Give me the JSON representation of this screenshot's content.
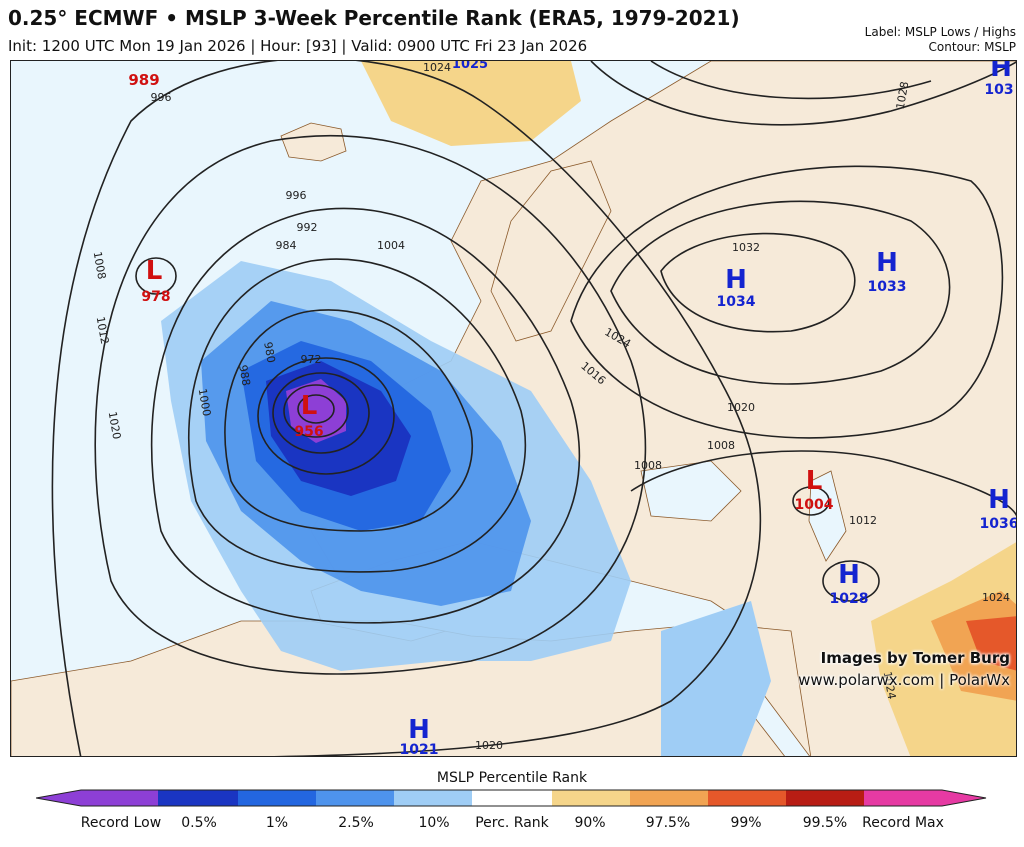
{
  "header": {
    "title": "0.25° ECMWF • MSLP 3-Week Percentile Rank (ERA5, 1979-2021)",
    "subtitle": "Init: 1200 UTC Mon 19 Jan 2026 | Hour: [93] | Valid: 0900 UTC Fri 23 Jan 2026",
    "label_note": "Label: MSLP Lows / Highs",
    "contour_note": "Contour: MSLP"
  },
  "credit": {
    "line1": "Images by Tomer Burg",
    "line2": "www.polarwx.com | PolarWx"
  },
  "pressure_centers": [
    {
      "type": "L",
      "value": "989"
    },
    {
      "type": "L",
      "value": "978"
    },
    {
      "type": "L",
      "value": "956"
    },
    {
      "type": "L",
      "value": "1004"
    },
    {
      "type": "H",
      "value": "1034"
    },
    {
      "type": "H",
      "value": "1033"
    },
    {
      "type": "H",
      "value": "1036"
    },
    {
      "type": "H",
      "value": "1028"
    },
    {
      "type": "H",
      "value": "1021"
    },
    {
      "type": "H",
      "value": "103"
    }
  ],
  "contour_labels": [
    "996",
    "1008",
    "1012",
    "1020",
    "1000",
    "988",
    "980",
    "984",
    "992",
    "996",
    "1004",
    "972",
    "1024",
    "1025",
    "1032",
    "1024",
    "1028",
    "1020",
    "1016",
    "1008",
    "1008",
    "1012",
    "1024",
    "1024",
    "1020"
  ],
  "colorbar": {
    "title": "MSLP Percentile Rank",
    "labels": [
      "Record Low",
      "0.5%",
      "1%",
      "2.5%",
      "10%",
      "Perc. Rank",
      "90%",
      "97.5%",
      "99%",
      "99.5%",
      "Record Max"
    ],
    "colors": [
      "#8d3fd6",
      "#1a35c2",
      "#2366e0",
      "#4e93ec",
      "#9fcdf5",
      "#ffffff",
      "#f5d58a",
      "#f1a453",
      "#e5582a",
      "#b81d14",
      "#e63aa3"
    ]
  },
  "colors": {
    "low_label": "#d01010",
    "high_label": "#1424d0",
    "land": "#f6ead9",
    "ocean": "#e9f6fd"
  }
}
